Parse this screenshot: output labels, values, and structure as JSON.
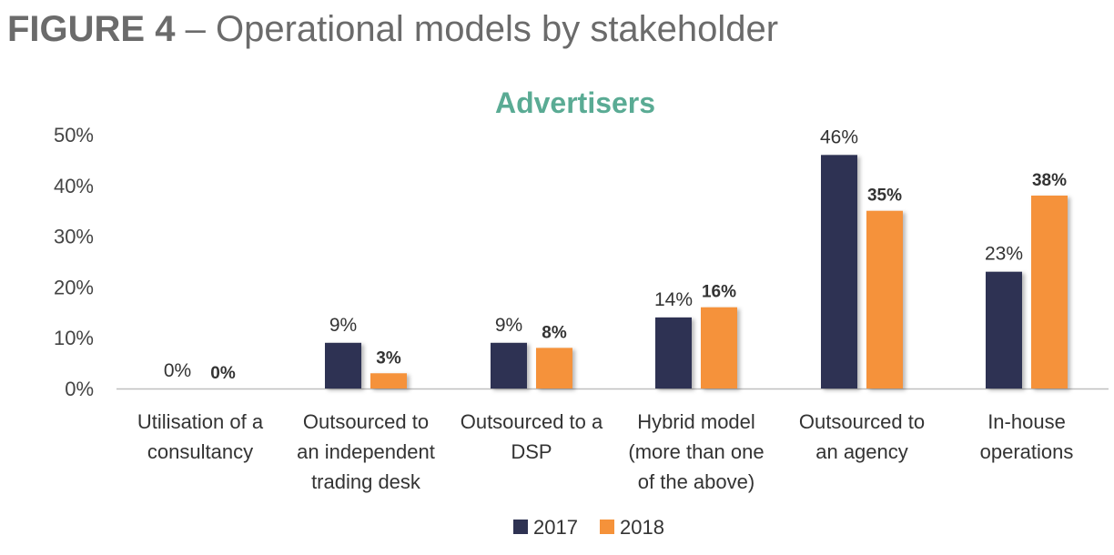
{
  "figure": {
    "label": "FIGURE 4",
    "separator": "–",
    "title": "Operational models by stakeholder"
  },
  "colors": {
    "series_2017": "#2e3252",
    "series_2018": "#f5923a",
    "title": "#5aab94",
    "axis": "#bfbfbf"
  },
  "chart_data": {
    "type": "bar",
    "title": "Advertisers",
    "categories": [
      [
        "Utilisation of a",
        "consultancy"
      ],
      [
        "Outsourced to",
        "an independent",
        "trading desk"
      ],
      [
        "Outsourced to a",
        "DSP"
      ],
      [
        "Hybrid model",
        "(more than one",
        "of the above)"
      ],
      [
        "Outsourced to",
        "an agency"
      ],
      [
        "In-house",
        "operations"
      ]
    ],
    "series": [
      {
        "name": "2017",
        "values": [
          0,
          9,
          9,
          14,
          46,
          23
        ]
      },
      {
        "name": "2018",
        "values": [
          0,
          3,
          8,
          16,
          35,
          38
        ]
      }
    ],
    "value_labels": [
      [
        "0%",
        "9%",
        "9%",
        "14%",
        "46%",
        "23%"
      ],
      [
        "0%",
        "3%",
        "8%",
        "16%",
        "35%",
        "38%"
      ]
    ],
    "y_ticks": [
      "0%",
      "10%",
      "20%",
      "30%",
      "40%",
      "50%"
    ],
    "ylim": [
      0,
      50
    ],
    "grid": false,
    "legend": "bottom-center"
  }
}
